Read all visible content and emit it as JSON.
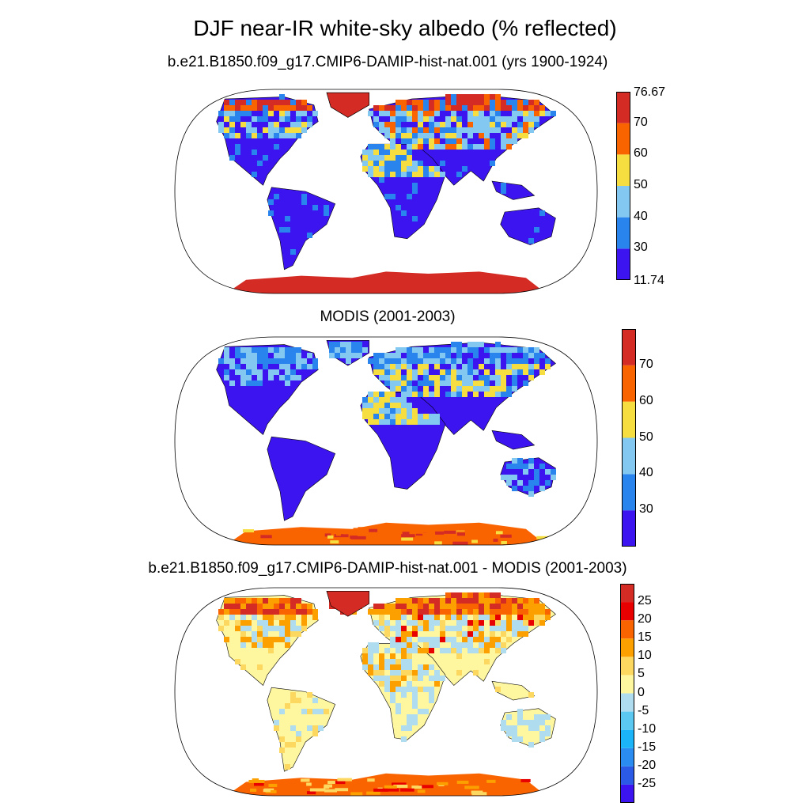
{
  "title": "DJF near-IR white-sky albedo (% reflected)",
  "panels": [
    {
      "title": "b.e21.B1850.f09_g17.CMIP6-DAMIP-hist-nat.001 (yrs 1900-1924)",
      "colorbar": {
        "colors": [
          "#3c14f0",
          "#2a84ee",
          "#82c8f0",
          "#f7de40",
          "#fa6400",
          "#d42c24"
        ],
        "labels": [
          "76.67",
          "70",
          "60",
          "50",
          "40",
          "30",
          "11.74"
        ]
      }
    },
    {
      "title": "MODIS (2001-2003)",
      "colorbar": {
        "colors": [
          "#3c14f0",
          "#2a84ee",
          "#82c8f0",
          "#f7de40",
          "#fa6400",
          "#d42c24"
        ],
        "labels": [
          "70",
          "60",
          "50",
          "40",
          "30"
        ]
      }
    },
    {
      "title": "b.e21.B1850.f09_g17.CMIP6-DAMIP-hist-nat.001 - MODIS (2001-2003)",
      "colorbar": {
        "colors": [
          "#3c14f0",
          "#2a5ae6",
          "#2a8cf0",
          "#1cb4f8",
          "#5ac8f0",
          "#b0dcf0",
          "#fff7a0",
          "#fcd860",
          "#fca000",
          "#fa6400",
          "#e80000",
          "#d42c24"
        ],
        "labels": [
          "25",
          "20",
          "15",
          "10",
          "5",
          "0",
          "-5",
          "-10",
          "-15",
          "-20",
          "-25"
        ]
      }
    }
  ]
}
